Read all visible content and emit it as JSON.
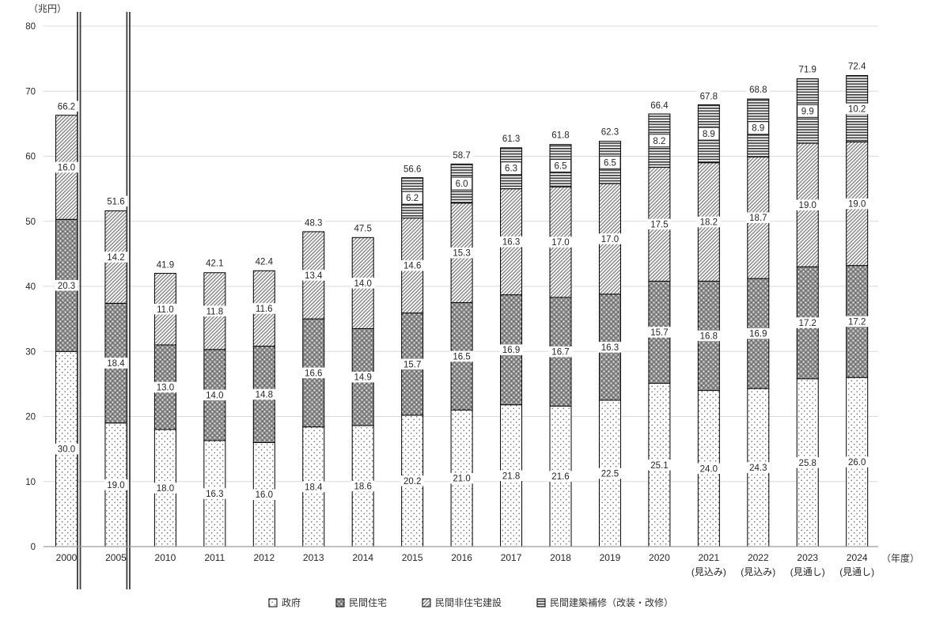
{
  "chart_data": {
    "type": "bar",
    "stacked": true,
    "unit_label": "（兆円）",
    "axis_unit_label": "（年度）",
    "categories": [
      "2000",
      "2005",
      "2010",
      "2011",
      "2012",
      "2013",
      "2014",
      "2015",
      "2016",
      "2017",
      "2018",
      "2019",
      "2020",
      "2021",
      "2022",
      "2023",
      "2024"
    ],
    "category_sublabels": [
      "",
      "",
      "",
      "",
      "",
      "",
      "",
      "",
      "",
      "",
      "",
      "",
      "",
      "(見込み)",
      "(見込み)",
      "(見通し)",
      "(見通し)"
    ],
    "series": [
      {
        "name": "政府",
        "pattern": "dots-sparse",
        "values": [
          30.0,
          19.0,
          18.0,
          16.3,
          16.0,
          18.4,
          18.6,
          20.2,
          21.0,
          21.8,
          21.6,
          22.5,
          25.1,
          24.0,
          24.3,
          25.8,
          26.0
        ]
      },
      {
        "name": "民間住宅",
        "pattern": "dots-dense",
        "values": [
          20.3,
          18.4,
          13.0,
          14.0,
          14.8,
          16.6,
          14.9,
          15.7,
          16.5,
          16.9,
          16.7,
          16.3,
          15.7,
          16.8,
          16.9,
          17.2,
          17.2
        ]
      },
      {
        "name": "民間非住宅建設",
        "pattern": "diagonal",
        "values": [
          16.0,
          14.2,
          11.0,
          11.8,
          11.6,
          13.4,
          14.0,
          14.6,
          15.3,
          16.3,
          17.0,
          17.0,
          17.5,
          18.2,
          18.7,
          19.0,
          19.0
        ]
      },
      {
        "name": "民間建築補修（改装・改修）",
        "pattern": "hlines",
        "values": [
          null,
          null,
          null,
          null,
          null,
          null,
          null,
          6.2,
          6.0,
          6.3,
          6.5,
          6.5,
          8.2,
          8.9,
          8.9,
          9.9,
          10.2
        ]
      }
    ],
    "totals": [
      66.2,
      51.6,
      41.9,
      42.1,
      42.4,
      48.3,
      47.5,
      56.6,
      58.7,
      61.3,
      61.8,
      62.3,
      66.4,
      67.8,
      68.8,
      71.9,
      72.4
    ],
    "ylim": [
      0,
      80
    ],
    "ytick_step": 10,
    "yticks": [
      "0",
      "10",
      "20",
      "30",
      "40",
      "50",
      "60",
      "70",
      "80"
    ],
    "grid": true,
    "legend_position": "bottom",
    "axis_breaks_after_categories": [
      "2000",
      "2005"
    ],
    "colors": {
      "gridline": "#d9d9d9",
      "axis_line": "#9b9b9b",
      "bar_stroke": "#000000",
      "text": "#262626",
      "break_line": "#3a3a3a"
    }
  }
}
